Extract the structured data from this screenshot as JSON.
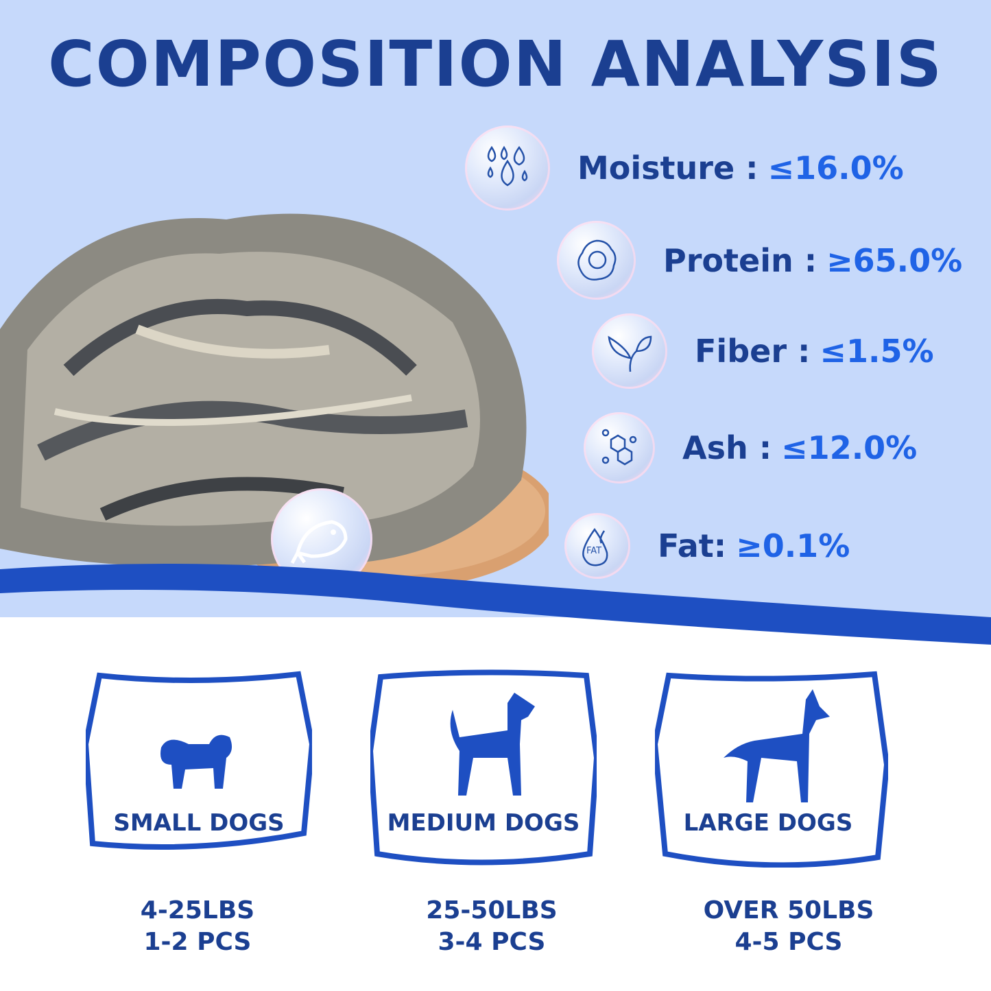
{
  "title": "COMPOSITION ANALYSIS",
  "colors": {
    "background": "#c6d9fb",
    "title": "#1b3f91",
    "value": "#1f63e6",
    "band": "#1e4fc2"
  },
  "composition": [
    {
      "icon": "water-drops-icon",
      "label": "Moisture :",
      "value": "≤16.0%"
    },
    {
      "icon": "egg-icon",
      "label": "Protein :",
      "value": "≥65.0%"
    },
    {
      "icon": "leaves-icon",
      "label": "Fiber :",
      "value": "≤1.5%"
    },
    {
      "icon": "molecule-icon",
      "label": "Ash :",
      "value": "≤12.0%"
    },
    {
      "icon": "fat-drop-icon",
      "label": "Fat:",
      "value": "≥0.1%"
    }
  ],
  "fat_icon_text": "FAT",
  "dogs": [
    {
      "name": "SMALL DOGS",
      "weight": "4-25LBS",
      "pieces": "1-2 PCS"
    },
    {
      "name": "MEDIUM DOGS",
      "weight": "25-50LBS",
      "pieces": "3-4 PCS"
    },
    {
      "name": "LARGE DOGS",
      "weight": "OVER 50LBS",
      "pieces": "4-5 PCS"
    }
  ]
}
